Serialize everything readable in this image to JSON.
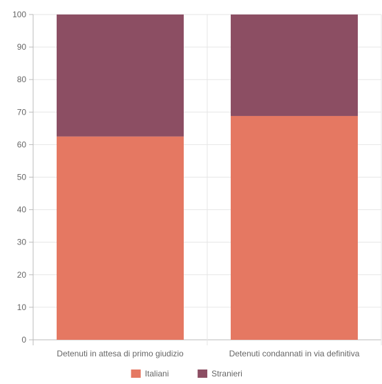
{
  "chart_data": {
    "type": "bar",
    "stacked": true,
    "categories": [
      "Detenuti in attesa di primo giudizio",
      "Detenuti condannati in via definitiva"
    ],
    "series": [
      {
        "name": "Italiani",
        "values": [
          62.5,
          68.8
        ],
        "color": "#e57862"
      },
      {
        "name": "Stranieri",
        "values": [
          37.5,
          31.2
        ],
        "color": "#8c4e63"
      }
    ],
    "ylim": [
      0,
      100
    ],
    "yticks": [
      0,
      10,
      20,
      30,
      40,
      50,
      60,
      70,
      80,
      90,
      100
    ],
    "grid": true,
    "legend": "bottom-center"
  }
}
